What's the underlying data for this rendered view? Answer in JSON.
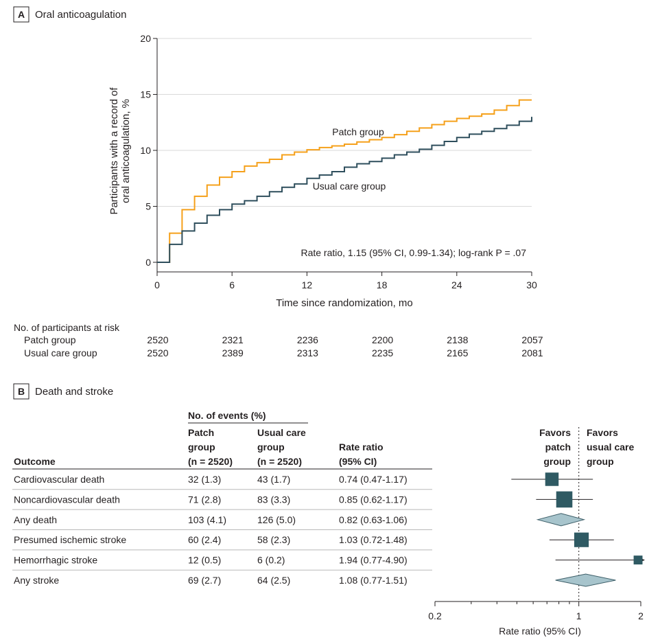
{
  "panel_a": {
    "letter": "A",
    "title": "Oral anticoagulation",
    "risk_table": {
      "title": "No. of participants at risk",
      "rows": [
        {
          "label": "Patch group",
          "values": [
            "2520",
            "2321",
            "2236",
            "2200",
            "2138",
            "2057"
          ]
        },
        {
          "label": "Usual care group",
          "values": [
            "2520",
            "2389",
            "2313",
            "2235",
            "2165",
            "2081"
          ]
        }
      ]
    }
  },
  "panel_b": {
    "letter": "B",
    "title": "Death and stroke",
    "table": {
      "group_header": "No. of events (%)",
      "col_outcome": "Outcome",
      "col_patch": [
        "Patch",
        "group",
        "(n = 2520)"
      ],
      "col_usual": [
        "Usual care",
        "group",
        "(n = 2520)"
      ],
      "col_rr": [
        "Rate ratio",
        "(95% CI)"
      ],
      "rows": [
        {
          "outcome": "Cardiovascular death",
          "patch": "32 (1.3)",
          "usual": "43 (1.7)",
          "rr_text": "0.74 (0.47-1.17)"
        },
        {
          "outcome": "Noncardiovascular death",
          "patch": "71 (2.8)",
          "usual": "83 (3.3)",
          "rr_text": "0.85 (0.62-1.17)"
        },
        {
          "outcome": "Any death",
          "patch": "103 (4.1)",
          "usual": "126 (5.0)",
          "rr_text": "0.82 (0.63-1.06)"
        },
        {
          "outcome": "Presumed ischemic stroke",
          "patch": "60 (2.4)",
          "usual": "58 (2.3)",
          "rr_text": "1.03 (0.72-1.48)"
        },
        {
          "outcome": "Hemorrhagic stroke",
          "patch": "12 (0.5)",
          "usual": "6 (0.2)",
          "rr_text": "1.94 (0.77-4.90)"
        },
        {
          "outcome": "Any stroke",
          "patch": "69 (2.7)",
          "usual": "64 (2.5)",
          "rr_text": "1.08 (0.77-1.51)"
        }
      ]
    },
    "favors_left": [
      "Favors",
      "patch",
      "group"
    ],
    "favors_right": [
      "Favors",
      "usual care",
      "group"
    ]
  },
  "colors": {
    "patch": "#f5a01a",
    "usual": "#2e4e5c",
    "marker": "#2f5a63",
    "diamond": "#a7c4cc",
    "grid": "#d9d9d9",
    "row_line": "#b8b8b8"
  },
  "chart_data": [
    {
      "type": "line",
      "title": "Oral anticoagulation",
      "xlabel": "Time since randomization, mo",
      "ylabel": [
        "Participants with a record of",
        "oral anticoagulation, %"
      ],
      "xlim": [
        0,
        30
      ],
      "ylim": [
        0,
        20
      ],
      "xticks": [
        0,
        6,
        12,
        18,
        24,
        30
      ],
      "yticks": [
        0,
        5,
        10,
        15,
        20
      ],
      "grid": true,
      "step": true,
      "annotation": "Rate ratio, 1.15 (95% CI, 0.99-1.34); log-rank P = .07",
      "series": [
        {
          "name": "Patch group",
          "x": [
            0,
            1,
            2,
            3,
            4,
            5,
            6,
            7,
            8,
            9,
            10,
            11,
            12,
            13,
            14,
            15,
            16,
            17,
            18,
            19,
            20,
            21,
            22,
            23,
            24,
            25,
            26,
            27,
            28,
            29,
            30
          ],
          "y": [
            0,
            2.6,
            4.7,
            5.9,
            6.9,
            7.6,
            8.1,
            8.6,
            8.9,
            9.2,
            9.6,
            9.85,
            10.05,
            10.25,
            10.4,
            10.55,
            10.75,
            10.95,
            11.15,
            11.4,
            11.7,
            12.0,
            12.3,
            12.6,
            12.85,
            13.05,
            13.25,
            13.6,
            14.0,
            14.5,
            14.5
          ]
        },
        {
          "name": "Usual care group",
          "x": [
            0,
            1,
            2,
            3,
            4,
            5,
            6,
            7,
            8,
            9,
            10,
            11,
            12,
            13,
            14,
            15,
            16,
            17,
            18,
            19,
            20,
            21,
            22,
            23,
            24,
            25,
            26,
            27,
            28,
            29,
            30
          ],
          "y": [
            0,
            1.6,
            2.8,
            3.5,
            4.2,
            4.7,
            5.2,
            5.5,
            5.9,
            6.3,
            6.7,
            7.0,
            7.5,
            7.8,
            8.1,
            8.5,
            8.8,
            9.0,
            9.3,
            9.6,
            9.85,
            10.1,
            10.45,
            10.8,
            11.15,
            11.45,
            11.7,
            11.95,
            12.25,
            12.6,
            13.0
          ]
        }
      ]
    },
    {
      "type": "forest",
      "xlabel": "Rate ratio (95% CI)",
      "xscale": "log",
      "xlim": [
        0.2,
        2
      ],
      "xticks": [
        0.2,
        1,
        2
      ],
      "reference": 1,
      "rows": [
        {
          "outcome": "Cardiovascular death",
          "rr": 0.74,
          "lo": 0.47,
          "hi": 1.17,
          "kind": "square",
          "weight": 43
        },
        {
          "outcome": "Noncardiovascular death",
          "rr": 0.85,
          "lo": 0.62,
          "hi": 1.17,
          "kind": "square",
          "weight": 83
        },
        {
          "outcome": "Any death",
          "rr": 0.82,
          "lo": 0.63,
          "hi": 1.06,
          "kind": "diamond"
        },
        {
          "outcome": "Presumed ischemic stroke",
          "rr": 1.03,
          "lo": 0.72,
          "hi": 1.48,
          "kind": "square",
          "weight": 58
        },
        {
          "outcome": "Hemorrhagic stroke",
          "rr": 1.94,
          "lo": 0.77,
          "hi": 4.9,
          "kind": "square",
          "weight": 6
        },
        {
          "outcome": "Any stroke",
          "rr": 1.08,
          "lo": 0.77,
          "hi": 1.51,
          "kind": "diamond"
        }
      ]
    }
  ]
}
